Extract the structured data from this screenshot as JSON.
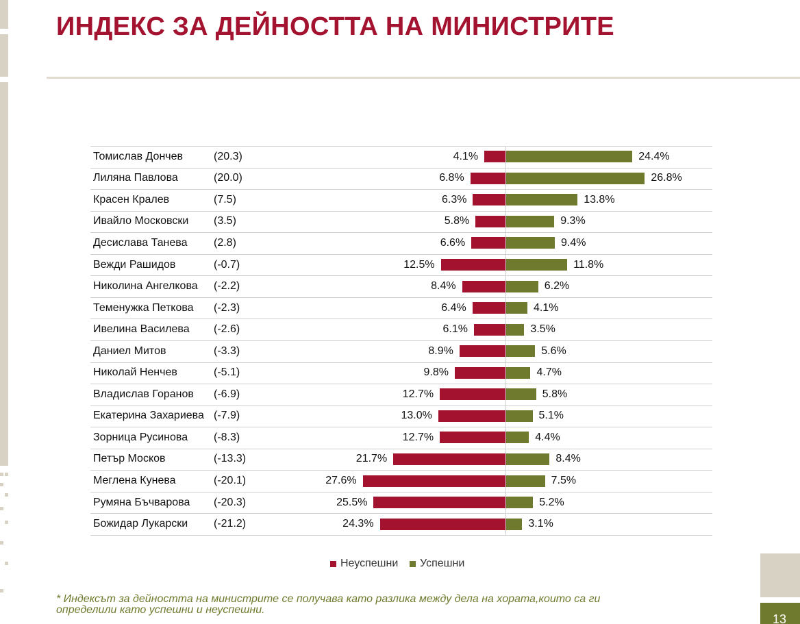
{
  "title": "ИНДЕКС ЗА ДЕЙНОСТТА НА МИНИСТРИТЕ",
  "colors": {
    "negative": "#a3122e",
    "positive": "#6f7a2e",
    "title": "#a3122e"
  },
  "chart_data": {
    "type": "bar",
    "orientation": "horizontal-diverging",
    "categories": [
      "Томислав Дончев",
      "Лиляна Павлова",
      "Красен Кралев",
      "Ивайло Московски",
      "Десислава Танева",
      "Вежди Рашидов",
      "Николина Ангелкова",
      "Теменужка Петкова",
      "Ивелина Василева",
      "Даниел Митов",
      "Николай Ненчев",
      "Владислав Горанов",
      "Екатерина Захариева",
      "Зорница Русинова",
      "Петър Москов",
      "Меглена Кунева",
      "Румяна Бъчварова",
      "Божидар Лукарски"
    ],
    "index_labels": [
      "(20.3)",
      "(20.0)",
      "(7.5)",
      "(3.5)",
      "(2.8)",
      "(-0.7)",
      "(-2.2)",
      "(-2.3)",
      "(-2.6)",
      "(-3.3)",
      "(-5.1)",
      "(-6.9)",
      "(-7.9)",
      "(-8.3)",
      "(-13.3)",
      "(-20.1)",
      "(-20.3)",
      "(-21.2)"
    ],
    "series": [
      {
        "name": "Неуспешни",
        "values": [
          4.1,
          6.8,
          6.3,
          5.8,
          6.6,
          12.5,
          8.4,
          6.4,
          6.1,
          8.9,
          9.8,
          12.7,
          13.0,
          12.7,
          21.7,
          27.6,
          25.5,
          24.3
        ],
        "labels": [
          "4.1%",
          "6.8%",
          "6.3%",
          "5.8%",
          "6.6%",
          "12.5%",
          "8.4%",
          "6.4%",
          "6.1%",
          "8.9%",
          "9.8%",
          "12.7%",
          "13.0%",
          "12.7%",
          "21.7%",
          "27.6%",
          "25.5%",
          "24.3%"
        ]
      },
      {
        "name": "Успешни",
        "values": [
          24.4,
          26.8,
          13.8,
          9.3,
          9.4,
          11.8,
          6.2,
          4.1,
          3.5,
          5.6,
          4.7,
          5.8,
          5.1,
          4.4,
          8.4,
          7.5,
          5.2,
          3.1
        ],
        "labels": [
          "24.4%",
          "26.8%",
          "13.8%",
          "9.3%",
          "9.4%",
          "11.8%",
          "6.2%",
          "4.1%",
          "3.5%",
          "5.6%",
          "4.7%",
          "5.8%",
          "5.1%",
          "4.4%",
          "8.4%",
          "7.5%",
          "5.2%",
          "3.1%"
        ]
      }
    ],
    "legend": [
      "Неуспешни",
      "Успешни"
    ],
    "legend_position": "bottom-center"
  },
  "footnote": "* Индексът за дейността на министрите се получава като разлика между дела на хората,които са ги определили като успешни и неуспешни.",
  "page_number": "13"
}
